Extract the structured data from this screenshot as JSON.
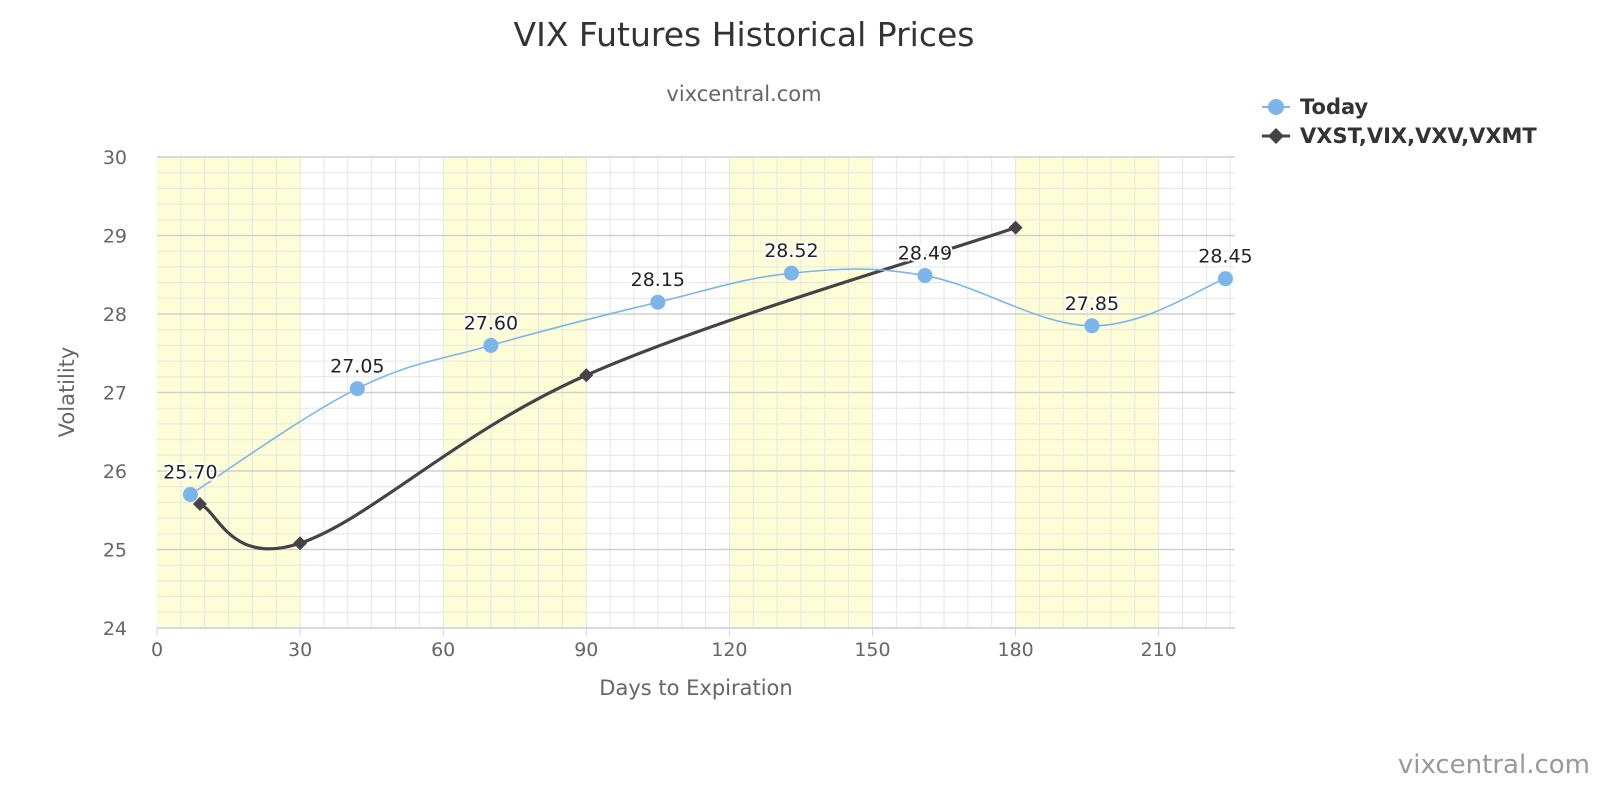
{
  "chart_data": {
    "type": "line",
    "title": "VIX Futures Historical Prices",
    "subtitle": "vixcentral.com",
    "xlabel": "Days to Expiration",
    "ylabel": "Volatility",
    "xlim": [
      0,
      226
    ],
    "ylim": [
      24,
      30
    ],
    "x_ticks": [
      0,
      30,
      60,
      90,
      120,
      150,
      180,
      210
    ],
    "y_ticks": [
      24,
      25,
      26,
      27,
      28,
      29,
      30
    ],
    "grid": true,
    "x_minor_grid_step": 5,
    "y_minor_grid_step": 0.2,
    "alternate_bands": {
      "step": 30,
      "color": "#fdfdd6"
    },
    "legend_position": "top-right",
    "series": [
      {
        "name": "Today",
        "color": "#7cb5ec",
        "marker": "circle",
        "show_data_labels": true,
        "points": [
          {
            "x": 7,
            "y": 25.7,
            "label": "25.70"
          },
          {
            "x": 42,
            "y": 27.05,
            "label": "27.05"
          },
          {
            "x": 70,
            "y": 27.6,
            "label": "27.60"
          },
          {
            "x": 105,
            "y": 28.15,
            "label": "28.15"
          },
          {
            "x": 133,
            "y": 28.52,
            "label": "28.52"
          },
          {
            "x": 161,
            "y": 28.49,
            "label": "28.49"
          },
          {
            "x": 196,
            "y": 27.85,
            "label": "27.85"
          },
          {
            "x": 224,
            "y": 28.45,
            "label": "28.45"
          }
        ]
      },
      {
        "name": "VXST,VIX,VXV,VXMT",
        "color": "#434348",
        "marker": "diamond",
        "show_data_labels": false,
        "points": [
          {
            "x": 9,
            "y": 25.58
          },
          {
            "x": 30,
            "y": 25.08
          },
          {
            "x": 90,
            "y": 27.22
          },
          {
            "x": 180,
            "y": 29.1
          }
        ]
      }
    ]
  },
  "credit": "vixcentral.com"
}
